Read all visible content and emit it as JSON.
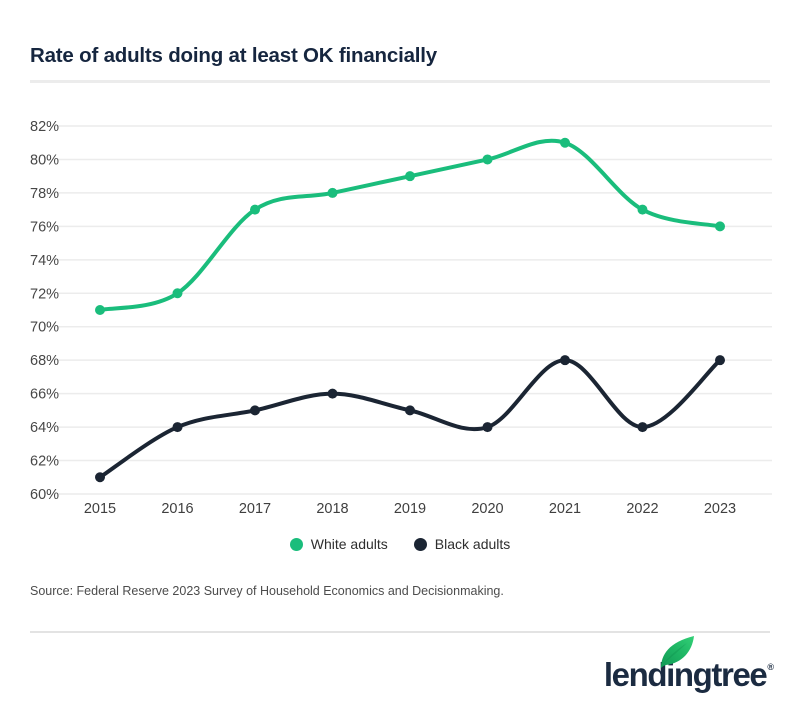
{
  "header": {
    "title": "Rate of adults doing at least OK financially"
  },
  "chart_data": {
    "type": "line",
    "title": "Rate of adults doing at least OK financially",
    "categories": [
      "2015",
      "2016",
      "2017",
      "2018",
      "2019",
      "2020",
      "2021",
      "2022",
      "2023"
    ],
    "series": [
      {
        "name": "White adults",
        "color": "#1abd7c",
        "values": [
          71,
          72,
          77,
          78,
          79,
          80,
          81,
          77,
          76
        ]
      },
      {
        "name": "Black adults",
        "color": "#1b2533",
        "values": [
          61,
          64,
          65,
          66,
          65,
          64,
          68,
          64,
          68
        ]
      }
    ],
    "yticks": [
      {
        "v": 82,
        "label": "82%"
      },
      {
        "v": 80,
        "label": "80%"
      },
      {
        "v": 78,
        "label": "78%"
      },
      {
        "v": 76,
        "label": "76%"
      },
      {
        "v": 74,
        "label": "74%"
      },
      {
        "v": 72,
        "label": "72%"
      },
      {
        "v": 70,
        "label": "70%"
      },
      {
        "v": 68,
        "label": "68%"
      },
      {
        "v": 66,
        "label": "66%"
      },
      {
        "v": 64,
        "label": "64%"
      },
      {
        "v": 62,
        "label": "62%"
      },
      {
        "v": 60,
        "label": "60%"
      }
    ],
    "ylim": [
      60,
      82
    ],
    "grid": "horizontal",
    "legend_position": "bottom-center",
    "line_style": "smooth",
    "markers": "dots"
  },
  "colors": {
    "accent_green": "#1abd7c",
    "navy": "#1b2533",
    "gridline": "#ececec",
    "tick_label": "#474747"
  },
  "footer": {
    "source": "Source: Federal Reserve 2023 Survey of Household Economics and Decisionmaking.",
    "brand": {
      "name": "lendingtree",
      "mark": "®"
    }
  }
}
